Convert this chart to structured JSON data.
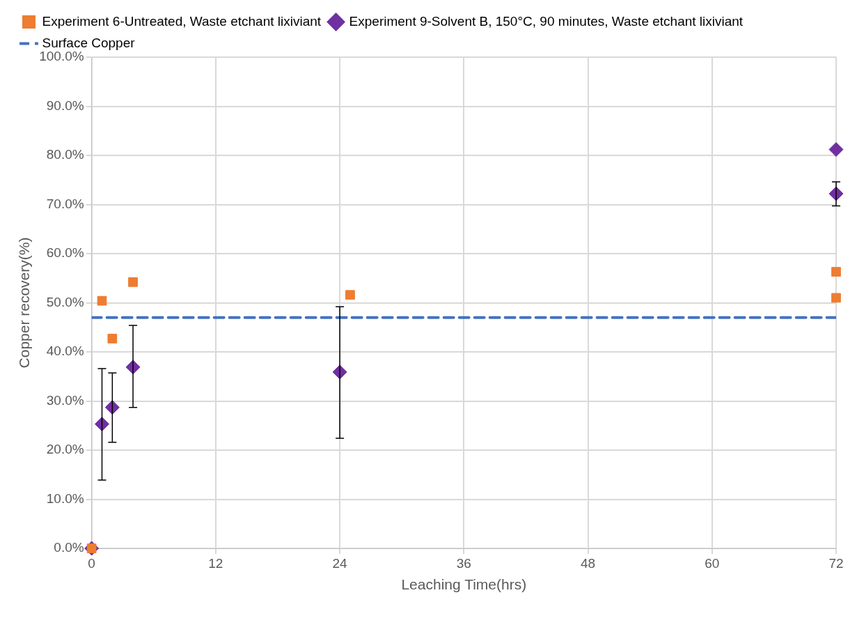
{
  "chart_data": {
    "type": "scatter",
    "xlabel": "Leaching Time(hrs)",
    "ylabel": "Copper recovery(%)",
    "xlim": [
      0,
      72
    ],
    "xticks": [
      0,
      12,
      24,
      36,
      48,
      60,
      72
    ],
    "ylim": [
      0,
      100
    ],
    "yticks": [
      {
        "value": 0,
        "label": "0.0%"
      },
      {
        "value": 10,
        "label": "10.0%"
      },
      {
        "value": 20,
        "label": "20.0%"
      },
      {
        "value": 30,
        "label": "30.0%"
      },
      {
        "value": 40,
        "label": "40.0%"
      },
      {
        "value": 50,
        "label": "50.0%"
      },
      {
        "value": 60,
        "label": "60.0%"
      },
      {
        "value": 70,
        "label": "70.0%"
      },
      {
        "value": 80,
        "label": "80.0%"
      },
      {
        "value": 90,
        "label": "90.0%"
      },
      {
        "value": 100,
        "label": "100.0%"
      }
    ],
    "grid": true,
    "legend": "top",
    "series": [
      {
        "name": "Experiment 6-Untreated, Waste etchant lixiviant",
        "color": "#ed7d31",
        "marker": "square",
        "x": [
          0,
          1,
          2,
          4,
          25,
          72,
          72
        ],
        "values": [
          0,
          50.4,
          42.7,
          54.2,
          51.6,
          56.3,
          51.0
        ]
      },
      {
        "name": "Experiment 9-Solvent B, 150°C, 90 minutes, Waste etchant lixiviant",
        "color": "#7030a0",
        "marker": "diamond",
        "x": [
          0,
          1,
          2,
          4,
          24,
          72,
          72
        ],
        "values": [
          0,
          25.3,
          28.7,
          36.9,
          35.9,
          81.2,
          72.2
        ],
        "errors": [
          null,
          [
            13.9,
            36.6
          ],
          [
            21.6,
            35.7
          ],
          [
            28.7,
            45.4
          ],
          [
            22.4,
            49.2
          ],
          null,
          [
            69.7,
            74.6
          ]
        ]
      }
    ],
    "ref_lines": [
      {
        "axis": "y",
        "value": 47,
        "label": "Surface Copper",
        "color": "#4472c4",
        "line_style": "dashed"
      }
    ]
  }
}
